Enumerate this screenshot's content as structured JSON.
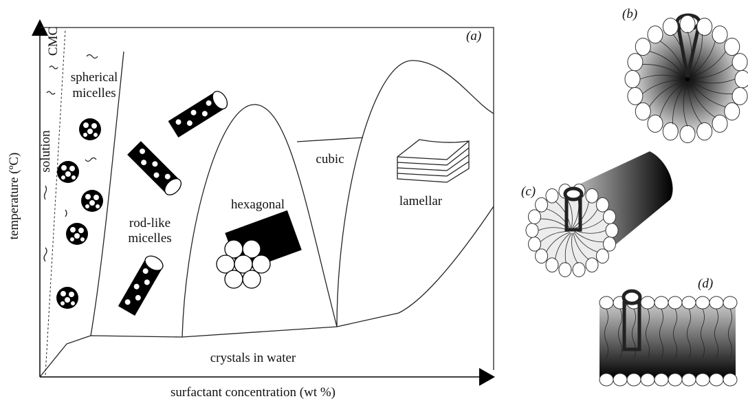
{
  "panels": {
    "a": "(a)",
    "b": "(b)",
    "c": "(c)",
    "d": "(d)"
  },
  "axes": {
    "x_label": "surfactant concentration (wt %)",
    "y_label": "temperature (ºC)"
  },
  "regions": {
    "cmc": "CMC",
    "solution": "solution",
    "spherical_micelles": [
      "spherical",
      "micelles"
    ],
    "rod_like_micelles": [
      "rod-like",
      "micelles"
    ],
    "hexagonal": "hexagonal",
    "cubic": "cubic",
    "lamellar": "lamellar",
    "crystals": "crystals in water"
  }
}
